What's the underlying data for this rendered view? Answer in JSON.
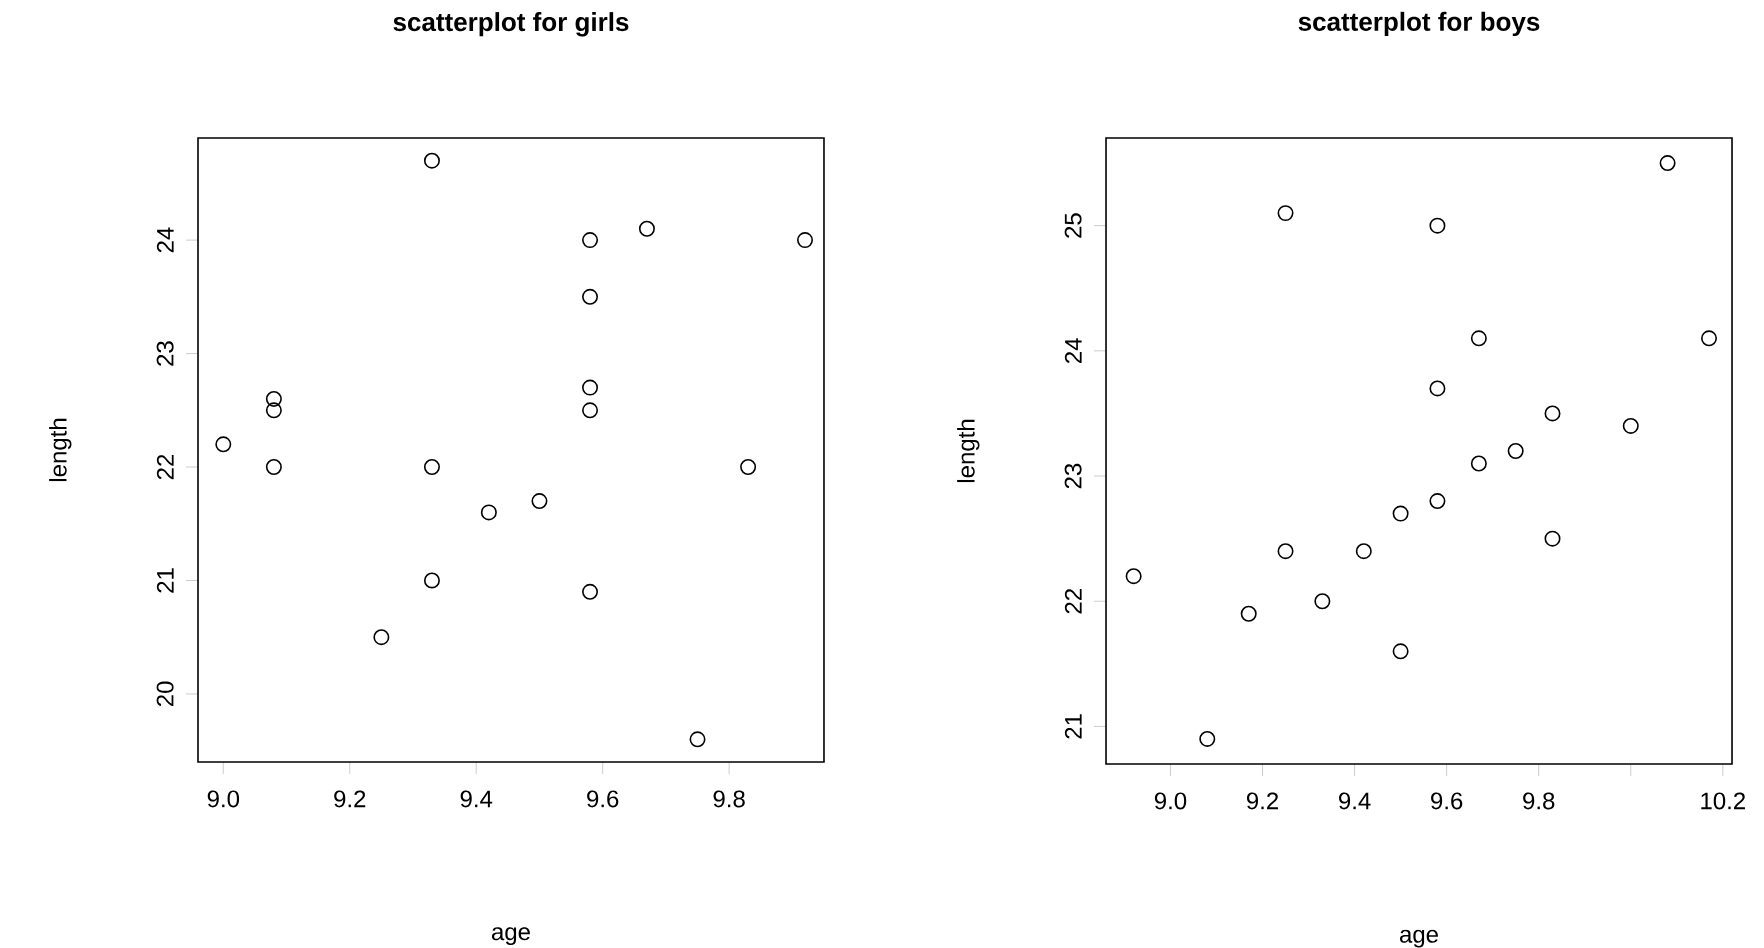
{
  "chart_data": [
    {
      "type": "scatter",
      "title": "scatterplot for girls",
      "xlabel": "age",
      "ylabel": "length",
      "marker": "circle",
      "color": "#000000",
      "x": [
        9.0,
        9.08,
        9.08,
        9.08,
        9.33,
        9.33,
        9.33,
        9.25,
        9.42,
        9.5,
        9.58,
        9.58,
        9.58,
        9.58,
        9.58,
        9.67,
        9.75,
        9.83,
        9.92
      ],
      "values": [
        22.2,
        22.6,
        22.5,
        22.0,
        24.7,
        22.0,
        21.0,
        20.5,
        21.6,
        21.7,
        24.0,
        23.5,
        22.7,
        22.5,
        20.9,
        24.1,
        19.6,
        22.0,
        24.0
      ],
      "xlim": [
        8.96,
        9.95
      ],
      "ylim": [
        19.4,
        24.9
      ],
      "xticks": [
        {
          "value": 9.0,
          "label": "9.0"
        },
        {
          "value": 9.2,
          "label": "9.2"
        },
        {
          "value": 9.4,
          "label": "9.4"
        },
        {
          "value": 9.6,
          "label": "9.6"
        },
        {
          "value": 9.8,
          "label": "9.8"
        }
      ],
      "yticks": [
        20,
        21,
        22,
        23,
        24
      ]
    },
    {
      "type": "scatter",
      "title": "scatterplot for boys",
      "xlabel": "age",
      "ylabel": "length",
      "marker": "circle",
      "color": "#000000",
      "x": [
        8.92,
        9.08,
        9.17,
        9.25,
        9.25,
        9.33,
        9.42,
        9.5,
        9.5,
        9.58,
        9.58,
        9.58,
        9.67,
        9.67,
        9.75,
        9.83,
        9.83,
        10.0,
        10.08,
        10.17
      ],
      "values": [
        22.2,
        20.9,
        21.9,
        25.1,
        22.4,
        22.0,
        22.4,
        22.7,
        21.6,
        25.0,
        23.7,
        22.8,
        24.1,
        23.1,
        23.2,
        23.5,
        22.5,
        23.4,
        25.5,
        24.1
      ],
      "xlim": [
        8.86,
        10.22
      ],
      "ylim": [
        20.7,
        25.7
      ],
      "xticks": [
        {
          "value": 9.0,
          "label": "9.0"
        },
        {
          "value": 9.2,
          "label": "9.2"
        },
        {
          "value": 9.4,
          "label": "9.4"
        },
        {
          "value": 9.6,
          "label": "9.6"
        },
        {
          "value": 9.8,
          "label": "9.8"
        },
        {
          "value": 10.0,
          "label": null
        },
        {
          "value": 10.2,
          "label": "10.2"
        }
      ],
      "yticks": [
        21,
        22,
        23,
        24,
        25
      ]
    }
  ]
}
